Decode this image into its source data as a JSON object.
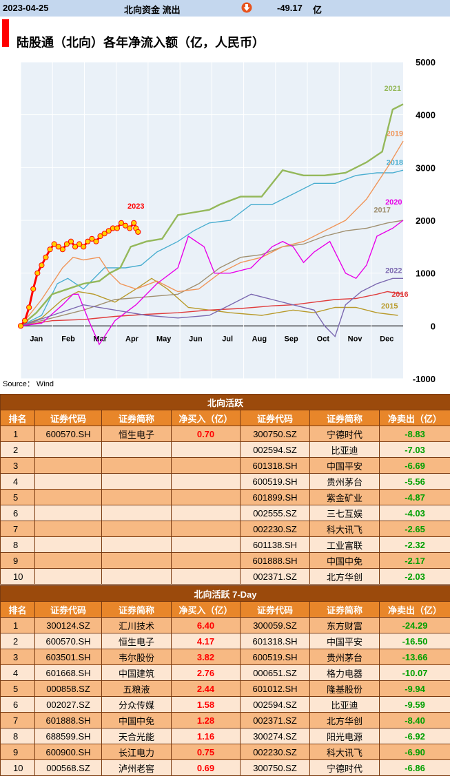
{
  "header": {
    "date": "2023-04-25",
    "label": "北向资金 流出",
    "arrow_icon": "red-down-arrow-icon",
    "value": "-49.17",
    "unit": "亿"
  },
  "source": "Source： Wind",
  "chart_data": {
    "type": "line",
    "title": "陆股通（北向）各年净流入额（亿，人民币）",
    "x_ticks": [
      "Jan",
      "Feb",
      "Mar",
      "Apr",
      "May",
      "Jun",
      "Jul",
      "Aug",
      "Sep",
      "Oct",
      "Nov",
      "Dec"
    ],
    "y_ticks": [
      "5000",
      "4000",
      "3000",
      "2000",
      "1000",
      "0",
      "-1000"
    ],
    "ylim": [
      -1000,
      5000
    ],
    "x_axis": "day of year",
    "series": [
      {
        "name": "2015",
        "color": "#b89a2a",
        "points": [
          [
            0,
            0
          ],
          [
            20,
            150
          ],
          [
            40,
            500
          ],
          [
            55,
            650
          ],
          [
            70,
            600
          ],
          [
            90,
            450
          ],
          [
            110,
            700
          ],
          [
            125,
            900
          ],
          [
            140,
            700
          ],
          [
            160,
            350
          ],
          [
            180,
            300
          ],
          [
            200,
            250
          ],
          [
            230,
            200
          ],
          [
            260,
            300
          ],
          [
            280,
            250
          ],
          [
            300,
            350
          ],
          [
            320,
            350
          ],
          [
            340,
            250
          ],
          [
            360,
            200
          ]
        ]
      },
      {
        "name": "2016",
        "color": "#e03c3c",
        "points": [
          [
            0,
            0
          ],
          [
            30,
            100
          ],
          [
            60,
            120
          ],
          [
            90,
            180
          ],
          [
            120,
            220
          ],
          [
            150,
            250
          ],
          [
            180,
            300
          ],
          [
            210,
            330
          ],
          [
            240,
            380
          ],
          [
            260,
            400
          ],
          [
            280,
            450
          ],
          [
            300,
            500
          ],
          [
            320,
            520
          ],
          [
            340,
            600
          ],
          [
            350,
            650
          ],
          [
            365,
            600
          ]
        ]
      },
      {
        "name": "2017",
        "color": "#a09070",
        "points": [
          [
            0,
            0
          ],
          [
            30,
            150
          ],
          [
            60,
            300
          ],
          [
            90,
            500
          ],
          [
            120,
            550
          ],
          [
            150,
            600
          ],
          [
            170,
            800
          ],
          [
            190,
            1100
          ],
          [
            210,
            1300
          ],
          [
            230,
            1350
          ],
          [
            250,
            1500
          ],
          [
            270,
            1550
          ],
          [
            290,
            1700
          ],
          [
            310,
            1800
          ],
          [
            330,
            1850
          ],
          [
            350,
            1950
          ],
          [
            365,
            2000
          ]
        ]
      },
      {
        "name": "2018",
        "color": "#4aaed0",
        "points": [
          [
            0,
            0
          ],
          [
            20,
            200
          ],
          [
            35,
            800
          ],
          [
            45,
            900
          ],
          [
            60,
            700
          ],
          [
            80,
            1100
          ],
          [
            100,
            1100
          ],
          [
            115,
            1150
          ],
          [
            130,
            1400
          ],
          [
            150,
            1600
          ],
          [
            165,
            1800
          ],
          [
            180,
            1950
          ],
          [
            200,
            2000
          ],
          [
            220,
            2300
          ],
          [
            240,
            2300
          ],
          [
            260,
            2500
          ],
          [
            280,
            2700
          ],
          [
            300,
            2700
          ],
          [
            320,
            2850
          ],
          [
            340,
            2900
          ],
          [
            355,
            2900
          ],
          [
            365,
            2950
          ]
        ]
      },
      {
        "name": "2019",
        "color": "#f0965a",
        "points": [
          [
            0,
            0
          ],
          [
            20,
            500
          ],
          [
            40,
            1100
          ],
          [
            50,
            1300
          ],
          [
            60,
            1250
          ],
          [
            75,
            1300
          ],
          [
            85,
            1000
          ],
          [
            95,
            800
          ],
          [
            110,
            700
          ],
          [
            130,
            850
          ],
          [
            150,
            650
          ],
          [
            170,
            700
          ],
          [
            190,
            1000
          ],
          [
            210,
            1200
          ],
          [
            230,
            1300
          ],
          [
            250,
            1500
          ],
          [
            270,
            1600
          ],
          [
            290,
            1800
          ],
          [
            310,
            2000
          ],
          [
            330,
            2400
          ],
          [
            350,
            3000
          ],
          [
            365,
            3500
          ]
        ]
      },
      {
        "name": "2020",
        "color": "#e800e8",
        "points": [
          [
            0,
            0
          ],
          [
            20,
            50
          ],
          [
            40,
            400
          ],
          [
            50,
            600
          ],
          [
            55,
            600
          ],
          [
            65,
            100
          ],
          [
            75,
            -350
          ],
          [
            90,
            100
          ],
          [
            110,
            400
          ],
          [
            130,
            800
          ],
          [
            150,
            1100
          ],
          [
            160,
            1700
          ],
          [
            175,
            1500
          ],
          [
            185,
            1000
          ],
          [
            200,
            1000
          ],
          [
            220,
            1100
          ],
          [
            240,
            1500
          ],
          [
            250,
            1600
          ],
          [
            260,
            1500
          ],
          [
            270,
            1200
          ],
          [
            280,
            1400
          ],
          [
            295,
            1600
          ],
          [
            310,
            1000
          ],
          [
            320,
            900
          ],
          [
            330,
            1150
          ],
          [
            340,
            1700
          ],
          [
            355,
            1850
          ],
          [
            365,
            2000
          ]
        ]
      },
      {
        "name": "2021",
        "color": "#94b85a",
        "points": [
          [
            0,
            0
          ],
          [
            15,
            250
          ],
          [
            30,
            600
          ],
          [
            45,
            700
          ],
          [
            60,
            800
          ],
          [
            75,
            850
          ],
          [
            85,
            1000
          ],
          [
            95,
            1100
          ],
          [
            105,
            1500
          ],
          [
            120,
            1600
          ],
          [
            135,
            1650
          ],
          [
            150,
            2100
          ],
          [
            165,
            2150
          ],
          [
            180,
            2200
          ],
          [
            190,
            2300
          ],
          [
            210,
            2450
          ],
          [
            230,
            2450
          ],
          [
            250,
            2950
          ],
          [
            270,
            2850
          ],
          [
            290,
            2850
          ],
          [
            310,
            2900
          ],
          [
            330,
            3100
          ],
          [
            345,
            3300
          ],
          [
            355,
            4100
          ],
          [
            365,
            4200
          ]
        ]
      },
      {
        "name": "2022",
        "color": "#7b68b0",
        "points": [
          [
            0,
            0
          ],
          [
            30,
            200
          ],
          [
            60,
            400
          ],
          [
            90,
            300
          ],
          [
            120,
            200
          ],
          [
            150,
            150
          ],
          [
            180,
            200
          ],
          [
            200,
            400
          ],
          [
            220,
            600
          ],
          [
            240,
            500
          ],
          [
            260,
            400
          ],
          [
            280,
            300
          ],
          [
            290,
            0
          ],
          [
            300,
            -200
          ],
          [
            310,
            400
          ],
          [
            325,
            650
          ],
          [
            340,
            800
          ],
          [
            355,
            900
          ],
          [
            365,
            900
          ]
        ]
      }
    ],
    "highlight": {
      "name": "2023",
      "color": "#ff0000",
      "marker_color": "#ffd000",
      "points": [
        [
          0,
          0
        ],
        [
          4,
          100
        ],
        [
          8,
          350
        ],
        [
          12,
          700
        ],
        [
          16,
          1000
        ],
        [
          20,
          1150
        ],
        [
          24,
          1300
        ],
        [
          28,
          1450
        ],
        [
          32,
          1550
        ],
        [
          36,
          1500
        ],
        [
          40,
          1450
        ],
        [
          44,
          1550
        ],
        [
          48,
          1600
        ],
        [
          52,
          1500
        ],
        [
          56,
          1550
        ],
        [
          60,
          1500
        ],
        [
          64,
          1600
        ],
        [
          68,
          1650
        ],
        [
          72,
          1600
        ],
        [
          76,
          1700
        ],
        [
          80,
          1750
        ],
        [
          84,
          1800
        ],
        [
          88,
          1850
        ],
        [
          92,
          1850
        ],
        [
          96,
          1950
        ],
        [
          100,
          1900
        ],
        [
          104,
          1850
        ],
        [
          108,
          1950
        ],
        [
          110,
          1850
        ],
        [
          112,
          1780
        ]
      ]
    }
  },
  "table1": {
    "section_title": "北向活跃",
    "headers": [
      "排名",
      "证券代码",
      "证券简称",
      "净买入（亿）",
      "证券代码",
      "证券简称",
      "净卖出（亿）"
    ],
    "rows": [
      [
        "1",
        "600570.SH",
        "恒生电子",
        "0.70",
        "300750.SZ",
        "宁德时代",
        "-8.83"
      ],
      [
        "2",
        "",
        "",
        "",
        "002594.SZ",
        "比亚迪",
        "-7.03"
      ],
      [
        "3",
        "",
        "",
        "",
        "601318.SH",
        "中国平安",
        "-6.69"
      ],
      [
        "4",
        "",
        "",
        "",
        "600519.SH",
        "贵州茅台",
        "-5.56"
      ],
      [
        "5",
        "",
        "",
        "",
        "601899.SH",
        "紫金矿业",
        "-4.87"
      ],
      [
        "6",
        "",
        "",
        "",
        "002555.SZ",
        "三七互娱",
        "-4.03"
      ],
      [
        "7",
        "",
        "",
        "",
        "002230.SZ",
        "科大讯飞",
        "-2.65"
      ],
      [
        "8",
        "",
        "",
        "",
        "601138.SH",
        "工业富联",
        "-2.32"
      ],
      [
        "9",
        "",
        "",
        "",
        "601888.SH",
        "中国中免",
        "-2.17"
      ],
      [
        "10",
        "",
        "",
        "",
        "002371.SZ",
        "北方华创",
        "-2.03"
      ]
    ]
  },
  "table2": {
    "section_title": "北向活跃 7-Day",
    "headers": [
      "排名",
      "证券代码",
      "证券简称",
      "净买入（亿）",
      "证券代码",
      "证券简称",
      "净卖出（亿）"
    ],
    "rows": [
      [
        "1",
        "300124.SZ",
        "汇川技术",
        "6.40",
        "300059.SZ",
        "东方财富",
        "-24.29"
      ],
      [
        "2",
        "600570.SH",
        "恒生电子",
        "4.17",
        "601318.SH",
        "中国平安",
        "-16.50"
      ],
      [
        "3",
        "603501.SH",
        "韦尔股份",
        "3.82",
        "600519.SH",
        "贵州茅台",
        "-13.66"
      ],
      [
        "4",
        "601668.SH",
        "中国建筑",
        "2.76",
        "000651.SZ",
        "格力电器",
        "-10.07"
      ],
      [
        "5",
        "000858.SZ",
        "五粮液",
        "2.44",
        "601012.SH",
        "隆基股份",
        "-9.94"
      ],
      [
        "6",
        "002027.SZ",
        "分众传媒",
        "1.58",
        "002594.SZ",
        "比亚迪",
        "-9.59"
      ],
      [
        "7",
        "601888.SH",
        "中国中免",
        "1.28",
        "002371.SZ",
        "北方华创",
        "-8.40"
      ],
      [
        "8",
        "688599.SH",
        "天合光能",
        "1.16",
        "300274.SZ",
        "阳光电源",
        "-6.92"
      ],
      [
        "9",
        "600900.SH",
        "长江电力",
        "0.75",
        "002230.SZ",
        "科大讯飞",
        "-6.90"
      ],
      [
        "10",
        "000568.SZ",
        "泸州老窖",
        "0.69",
        "300750.SZ",
        "宁德时代",
        "-6.86"
      ]
    ]
  }
}
